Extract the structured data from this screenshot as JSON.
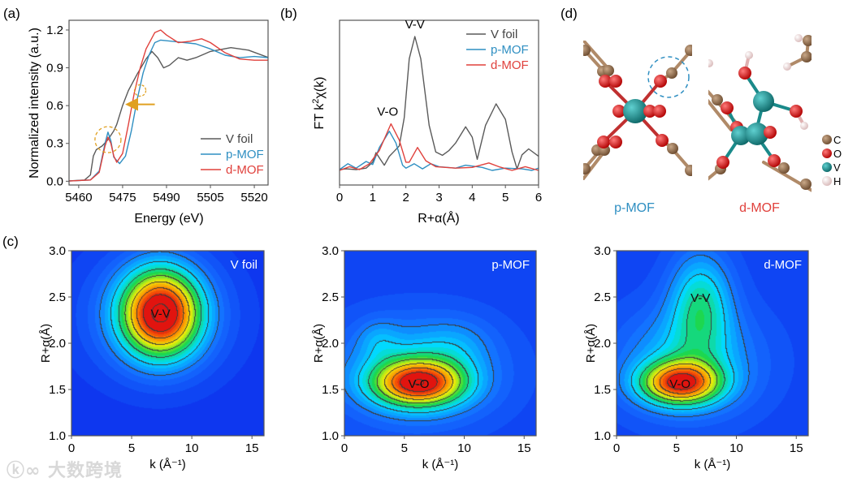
{
  "panel_labels": {
    "a": "(a)",
    "b": "(b)",
    "c": "(c)",
    "d": "(d)"
  },
  "colors": {
    "v_foil": "#5a5a5a",
    "p_mof": "#2f8fc2",
    "d_mof": "#e0413c",
    "annotation": "#e0a020"
  },
  "chart_data": [
    {
      "id": "a",
      "type": "line",
      "xlabel": "Energy (eV)",
      "ylabel": "Normalized intensity (a.u.)",
      "xlim": [
        5456.7,
        5524.7
      ],
      "ylim": [
        -0.03,
        1.277
      ],
      "xticks": [
        "5460",
        "5475",
        "5490",
        "5505",
        "5520"
      ],
      "yticks": [
        "0.0",
        "0.3",
        "0.6",
        "0.9",
        "1.2"
      ],
      "legend": "bottom-right",
      "series": [
        {
          "name": "V foil",
          "color": "#5a5a5a",
          "points": [
            [
              5455,
              0
            ],
            [
              5462,
              0.01
            ],
            [
              5464,
              0.05
            ],
            [
              5465,
              0.2
            ],
            [
              5466,
              0.25
            ],
            [
              5468,
              0.28
            ],
            [
              5470,
              0.33
            ],
            [
              5472,
              0.4
            ],
            [
              5473,
              0.45
            ],
            [
              5475,
              0.6
            ],
            [
              5477,
              0.72
            ],
            [
              5480,
              0.85
            ],
            [
              5483,
              0.97
            ],
            [
              5485,
              1.03
            ],
            [
              5487,
              0.98
            ],
            [
              5489,
              0.9
            ],
            [
              5491,
              0.92
            ],
            [
              5494,
              0.98
            ],
            [
              5497,
              0.96
            ],
            [
              5500,
              0.98
            ],
            [
              5505,
              1.03
            ],
            [
              5512,
              1.06
            ],
            [
              5518,
              1.04
            ],
            [
              5525,
              0.98
            ]
          ]
        },
        {
          "name": "p-MOF",
          "color": "#2f8fc2",
          "points": [
            [
              5455,
              0
            ],
            [
              5464,
              0.01
            ],
            [
              5467,
              0.08
            ],
            [
              5469,
              0.3
            ],
            [
              5470,
              0.39
            ],
            [
              5471,
              0.32
            ],
            [
              5472,
              0.19
            ],
            [
              5474,
              0.14
            ],
            [
              5476,
              0.2
            ],
            [
              5478,
              0.4
            ],
            [
              5480,
              0.65
            ],
            [
              5482,
              0.86
            ],
            [
              5484,
              1.0
            ],
            [
              5486,
              1.1
            ],
            [
              5488,
              1.12
            ],
            [
              5492,
              1.11
            ],
            [
              5500,
              1.09
            ],
            [
              5505,
              1.05
            ],
            [
              5510,
              1.0
            ],
            [
              5515,
              0.98
            ],
            [
              5520,
              0.99
            ],
            [
              5525,
              0.98
            ]
          ]
        },
        {
          "name": "d-MOF",
          "color": "#e0413c",
          "points": [
            [
              5455,
              0
            ],
            [
              5464,
              0.01
            ],
            [
              5467,
              0.07
            ],
            [
              5469,
              0.28
            ],
            [
              5470,
              0.35
            ],
            [
              5471,
              0.3
            ],
            [
              5472,
              0.2
            ],
            [
              5473,
              0.15
            ],
            [
              5475,
              0.22
            ],
            [
              5477,
              0.45
            ],
            [
              5479,
              0.7
            ],
            [
              5481,
              0.9
            ],
            [
              5483,
              1.05
            ],
            [
              5486,
              1.18
            ],
            [
              5488,
              1.2
            ],
            [
              5490,
              1.16
            ],
            [
              5494,
              1.1
            ],
            [
              5498,
              1.11
            ],
            [
              5502,
              1.13
            ],
            [
              5505,
              1.1
            ],
            [
              5510,
              1.02
            ],
            [
              5515,
              0.97
            ],
            [
              5520,
              0.96
            ],
            [
              5525,
              0.96
            ]
          ]
        }
      ],
      "annotations": {
        "pre_edge_circle": [
          5470,
          0.33
        ],
        "edge_circle": [
          5481,
          0.72
        ],
        "arrow_from": [
          5486,
          0.61
        ],
        "arrow_to": [
          5477,
          0.61
        ]
      }
    },
    {
      "id": "b",
      "type": "line",
      "xlabel": "R+α(Å)",
      "ylabel_prefix": "FT k",
      "ylabel_sup": "2",
      "ylabel_suffix": "χ(k)",
      "xlim": [
        0,
        6
      ],
      "ylim": [
        -1.04,
        10.1
      ],
      "xticks": [
        "0",
        "1",
        "2",
        "3",
        "4",
        "5",
        "6"
      ],
      "legend": "top-right",
      "series": [
        {
          "name": "V foil",
          "color": "#5a5a5a",
          "points": [
            [
              0,
              0
            ],
            [
              0.2,
              0.05
            ],
            [
              0.5,
              0
            ],
            [
              0.8,
              0.1
            ],
            [
              1.0,
              0.5
            ],
            [
              1.1,
              1.15
            ],
            [
              1.2,
              0.8
            ],
            [
              1.35,
              0.3
            ],
            [
              1.5,
              0.9
            ],
            [
              1.65,
              1.25
            ],
            [
              1.8,
              1.6
            ],
            [
              1.95,
              3.5
            ],
            [
              2.1,
              7.5
            ],
            [
              2.27,
              9
            ],
            [
              2.45,
              7.5
            ],
            [
              2.7,
              3
            ],
            [
              2.9,
              1.2
            ],
            [
              3.1,
              0.97
            ],
            [
              3.3,
              1.3
            ],
            [
              3.5,
              1.8
            ],
            [
              3.8,
              2.9
            ],
            [
              4.0,
              2.2
            ],
            [
              4.15,
              0.7
            ],
            [
              4.4,
              3
            ],
            [
              4.72,
              4.45
            ],
            [
              5.0,
              3.4
            ],
            [
              5.2,
              1.2
            ],
            [
              5.35,
              0.05
            ],
            [
              5.5,
              1.0
            ],
            [
              5.7,
              1.4
            ],
            [
              6,
              0.9
            ]
          ]
        },
        {
          "name": "p-MOF",
          "color": "#2f8fc2",
          "points": [
            [
              0,
              0
            ],
            [
              0.25,
              0.4
            ],
            [
              0.5,
              0.1
            ],
            [
              0.8,
              0.55
            ],
            [
              1.0,
              0.35
            ],
            [
              1.2,
              1.5
            ],
            [
              1.5,
              2.6
            ],
            [
              1.7,
              1.8
            ],
            [
              1.9,
              0.3
            ],
            [
              2.0,
              0.1
            ],
            [
              2.25,
              0.4
            ],
            [
              2.5,
              0.05
            ],
            [
              2.75,
              0.4
            ],
            [
              3,
              0.2
            ],
            [
              3.5,
              0.1
            ],
            [
              3.8,
              0.3
            ],
            [
              4.3,
              0.15
            ],
            [
              4.6,
              -0.05
            ],
            [
              5,
              0.1
            ],
            [
              5.5,
              0.05
            ],
            [
              5.8,
              -0.05
            ],
            [
              6,
              0.1
            ]
          ]
        },
        {
          "name": "d-MOF",
          "color": "#e0413c",
          "points": [
            [
              0,
              -0.05
            ],
            [
              0.3,
              0.2
            ],
            [
              0.6,
              0
            ],
            [
              0.9,
              0.4
            ],
            [
              1.2,
              1.3
            ],
            [
              1.55,
              3.1
            ],
            [
              1.8,
              2.0
            ],
            [
              2.0,
              0.5
            ],
            [
              2.1,
              0.5
            ],
            [
              2.35,
              1.5
            ],
            [
              2.6,
              0.6
            ],
            [
              2.9,
              0.2
            ],
            [
              3.5,
              0.1
            ],
            [
              4,
              0.15
            ],
            [
              4.5,
              0.45
            ],
            [
              4.8,
              0.2
            ],
            [
              5.2,
              -0.05
            ],
            [
              5.6,
              0.2
            ],
            [
              6,
              -0.05
            ]
          ]
        }
      ],
      "annotations": [
        {
          "text": "V-V",
          "x": 2.27,
          "y": 9
        },
        {
          "text": "V-O",
          "x": 1.45,
          "y": 3.1
        }
      ]
    },
    {
      "id": "c1",
      "type": "heatmap",
      "title": "V foil",
      "xlabel": "k (Å⁻¹)",
      "ylabel": "R+α(Å)",
      "xlim": [
        0,
        16
      ],
      "ylim": [
        1.0,
        3.0
      ],
      "xticks": [
        "0",
        "5",
        "10",
        "15"
      ],
      "yticks": [
        "1.0",
        "1.5",
        "2.0",
        "2.5",
        "3.0"
      ],
      "baseline": 0.05,
      "peaks": [
        {
          "k": 7.4,
          "R": 2.33,
          "sk": 2.3,
          "sR": 0.33,
          "amp": 0.92
        },
        {
          "k": 7,
          "R": 2.3,
          "sk": 4.5,
          "sR": 0.5,
          "amp": 0.2
        }
      ],
      "labels": [
        {
          "text": "V-V",
          "k": 7.4,
          "R": 2.33
        }
      ]
    },
    {
      "id": "c2",
      "type": "heatmap",
      "title": "p-MOF",
      "xlabel": "k (Å⁻¹)",
      "ylabel": "R+α(Å)",
      "xlim": [
        0,
        16
      ],
      "ylim": [
        1.0,
        3.0
      ],
      "xticks": [
        "0",
        "5",
        "10",
        "15"
      ],
      "yticks": [
        "1.0",
        "1.5",
        "2.0",
        "2.5",
        "3.0"
      ],
      "baseline": 0.1,
      "peaks": [
        {
          "k": 6.2,
          "R": 1.57,
          "sk": 2.6,
          "sR": 0.17,
          "amp": 0.75
        },
        {
          "k": 6,
          "R": 1.7,
          "sk": 4.5,
          "sR": 0.38,
          "amp": 0.3
        },
        {
          "k": 2.8,
          "R": 2.05,
          "sk": 1.2,
          "sR": 0.15,
          "amp": 0.1
        },
        {
          "k": 9.5,
          "R": 2.0,
          "sk": 2,
          "sR": 0.2,
          "amp": 0.08
        }
      ],
      "labels": [
        {
          "text": "V-O",
          "k": 6.2,
          "R": 1.57
        }
      ]
    },
    {
      "id": "c3",
      "type": "heatmap",
      "title": "d-MOF",
      "xlabel": "k (Å⁻¹)",
      "ylabel": "R+α(Å)",
      "xlim": [
        0,
        16
      ],
      "ylim": [
        1.0,
        3.0
      ],
      "xticks": [
        "0",
        "5",
        "10",
        "15"
      ],
      "yticks": [
        "1.0",
        "1.5",
        "2.0",
        "2.5",
        "3.0"
      ],
      "baseline": 0.1,
      "peaks": [
        {
          "k": 5.3,
          "R": 1.57,
          "sk": 2.3,
          "sR": 0.16,
          "amp": 0.75
        },
        {
          "k": 7,
          "R": 2.45,
          "sk": 1.8,
          "sR": 0.38,
          "amp": 0.35
        },
        {
          "k": 6,
          "R": 1.8,
          "sk": 4,
          "sR": 0.4,
          "amp": 0.28
        }
      ],
      "labels": [
        {
          "text": "V-O",
          "k": 5.3,
          "R": 1.57
        },
        {
          "text": "V-V",
          "k": 7.0,
          "R": 2.5
        }
      ]
    }
  ],
  "structures": {
    "p_mof_label": "p-MOF",
    "d_mof_label": "d-MOF",
    "legend": [
      {
        "symbol": "C",
        "color": "#8b6a4a"
      },
      {
        "symbol": "O",
        "color": "#e01515"
      },
      {
        "symbol": "V",
        "color": "#1a9494"
      },
      {
        "symbol": "H",
        "color": "#f2dada"
      }
    ]
  },
  "watermark": "大数跨境"
}
